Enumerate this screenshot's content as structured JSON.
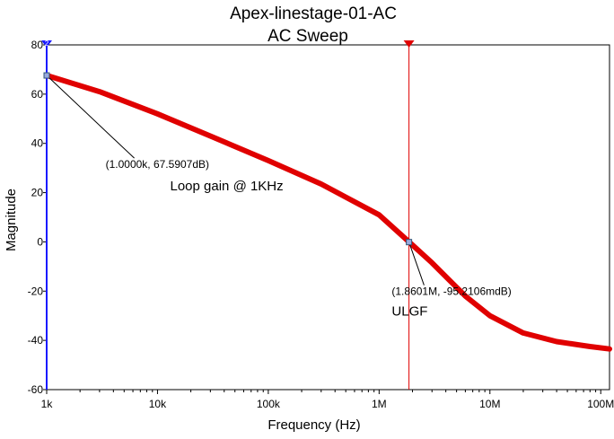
{
  "chart_data": {
    "type": "line",
    "title": "Apex-linestage-01-AC",
    "subtitle": "AC Sweep",
    "xlabel": "Frequency (Hz)",
    "ylabel": "Magnitude",
    "x_scale": "log",
    "xlim": [
      1000,
      120000000
    ],
    "ylim": [
      -60,
      80
    ],
    "x_ticks": [
      1000,
      10000,
      100000,
      1000000,
      10000000,
      100000000
    ],
    "x_tick_labels": [
      "1k",
      "10k",
      "100k",
      "1M",
      "10M",
      "100M"
    ],
    "y_ticks": [
      80,
      60,
      40,
      20,
      0,
      -20,
      -40,
      -60
    ],
    "y_tick_labels": [
      "80",
      "60",
      "40",
      "20",
      "0",
      "-20",
      "-40",
      "-60"
    ],
    "grid": false,
    "series": [
      {
        "color": "#e00000",
        "x": [
          1000,
          3000,
          10000,
          30000,
          100000,
          300000,
          1000000,
          1860000,
          3000000,
          6000000,
          10000000,
          20000000,
          40000000,
          80000000,
          120000000
        ],
        "y": [
          67.59,
          61,
          52,
          43,
          33,
          23.5,
          11,
          0,
          -8.5,
          -22,
          -30,
          -37,
          -40.5,
          -42.5,
          -43.5
        ]
      }
    ],
    "cursors": [
      {
        "x": 1000,
        "color": "#1a1aff",
        "marker": "2"
      },
      {
        "x": 1860000,
        "color": "#e00000",
        "marker": ""
      }
    ],
    "annotations": [
      {
        "text": "(1.0000k, 67.5907dB)",
        "point": [
          1000,
          67.59
        ],
        "label_x": 3400,
        "label_y": 30
      },
      {
        "text": "Loop gain @ 1KHz",
        "label_x": 13000,
        "label_y": 21
      },
      {
        "text": "(1.8601M, -95.2106mdB)",
        "point": [
          1860000,
          -0.0952
        ],
        "label_x": 1300000,
        "label_y": -21.6
      },
      {
        "text": "ULGF",
        "label_x": 1300000,
        "label_y": -30
      }
    ]
  }
}
